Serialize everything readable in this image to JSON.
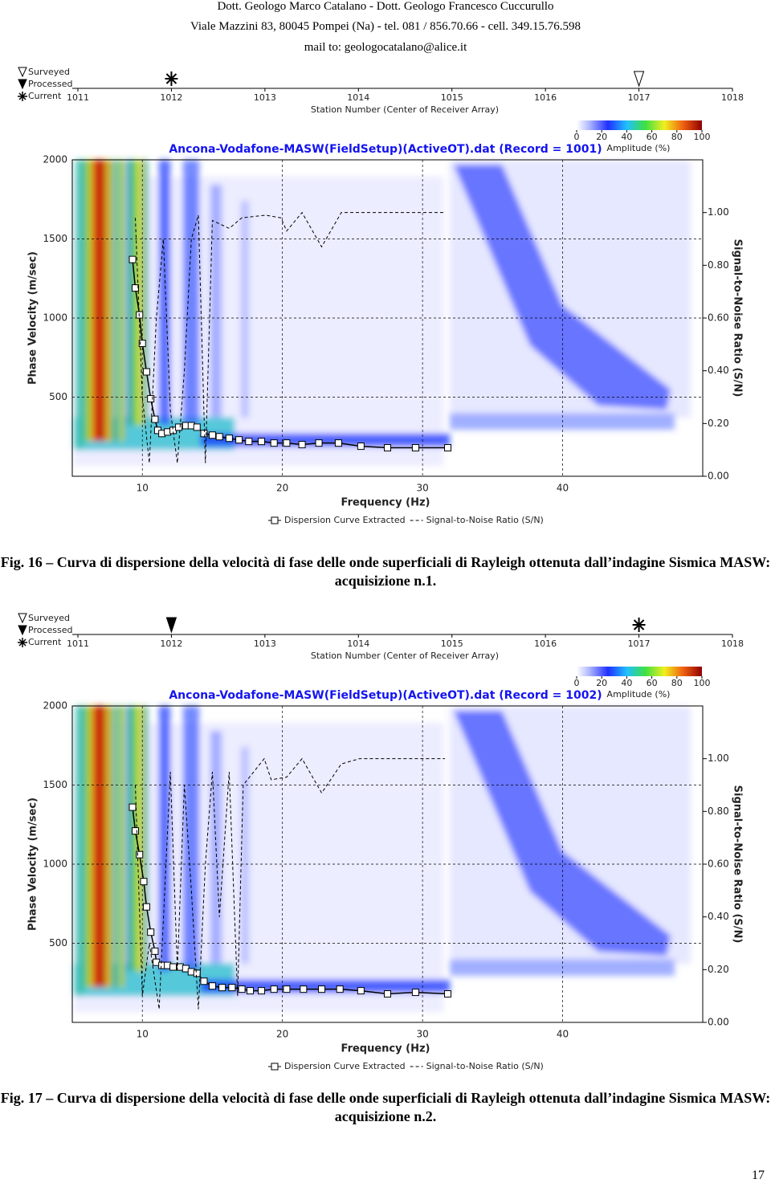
{
  "header": {
    "lines": [
      "Dott. Geologo Marco Catalano - Dott. Geologo Francesco Cuccurullo",
      "Viale Mazzini 83, 80045 Pompei (Na) - tel. 081 / 856.70.66 - cell. 349.15.76.598",
      "mail to: geologocatalano@alice.it"
    ]
  },
  "chart_data": [
    {
      "type": "line",
      "title": "Ancona-Vodafone-MASW(FieldSetup)(ActiveOT).dat (Record = 1001)",
      "station_legend": [
        "Surveyed",
        "Processed",
        "Current"
      ],
      "station_label": "Station Number (Center of Receiver Array)",
      "station_lim": [
        1011,
        1018
      ],
      "station_ticks": [
        1011,
        1012,
        1013,
        1014,
        1015,
        1016,
        1017,
        1018
      ],
      "station_markers": [
        {
          "legend": 2,
          "station": 1012
        },
        {
          "legend": 0,
          "station": 1017
        }
      ],
      "amplitude_label": "Amplitude (%)",
      "amplitude_ticks": [
        0,
        20,
        40,
        60,
        80,
        100
      ],
      "amplitude_lim": [
        0,
        100
      ],
      "x_label": "Frequency (Hz)",
      "y_label": "Phase Velocity (m/sec)",
      "y2_label": "Signal-to-Noise Ratio (S/N)",
      "xlim": [
        5,
        50
      ],
      "xticks": [
        10,
        20,
        30,
        40
      ],
      "ylim": [
        0,
        2000
      ],
      "yticks": [
        500,
        1000,
        1500,
        2000
      ],
      "y2lim": [
        0,
        1.2
      ],
      "y2ticks": [
        {
          "value": 0,
          "label": "0.00"
        },
        {
          "value": 0.2,
          "label": "0.20"
        },
        {
          "value": 0.4,
          "label": "0.40"
        },
        {
          "value": 0.6,
          "label": "0.60"
        },
        {
          "value": 0.8,
          "label": "0.80"
        },
        {
          "value": 1,
          "label": "1.00"
        }
      ],
      "grid": true,
      "series": [
        {
          "name": "Dispersion Curve Extracted",
          "color": "#000000",
          "line_style": "solid",
          "marker": "square",
          "x": [
            9.3,
            9.5,
            9.8,
            10.0,
            10.3,
            10.6,
            10.9,
            11.1,
            11.4,
            11.8,
            12.2,
            12.6,
            13.1,
            13.5,
            13.9,
            14.4,
            15.0,
            15.5,
            16.2,
            16.9,
            17.6,
            18.5,
            19.4,
            20.3,
            21.4,
            22.6,
            24.0,
            25.6,
            27.5,
            29.5,
            31.8
          ],
          "values": [
            1370,
            1190,
            1020,
            840,
            660,
            490,
            360,
            290,
            270,
            280,
            290,
            310,
            320,
            320,
            310,
            270,
            260,
            250,
            240,
            230,
            220,
            220,
            210,
            210,
            200,
            210,
            210,
            190,
            180,
            180,
            180
          ]
        },
        {
          "name": "Signal-to-Noise Ratio (S/N)",
          "color": "#000000",
          "line_style": "dashed",
          "marker": "none",
          "axis": "y2",
          "x": [
            9.5,
            10,
            10.5,
            11,
            11.5,
            12,
            12.5,
            13,
            13.5,
            14,
            14.5,
            15,
            16.2,
            17.1,
            18.8,
            19.9,
            20.3,
            21.4,
            22.8,
            24.2,
            31.6
          ],
          "values": [
            0.98,
            0.3,
            0.05,
            0.6,
            0.9,
            0.25,
            0.05,
            0.4,
            0.9,
            0.99,
            0.05,
            0.97,
            0.94,
            0.98,
            0.99,
            0.98,
            0.93,
            1.0,
            0.87,
            1.0,
            1.0
          ]
        }
      ]
    },
    {
      "type": "line",
      "title": "Ancona-Vodafone-MASW(FieldSetup)(ActiveOT).dat (Record = 1002)",
      "station_legend": [
        "Surveyed",
        "Processed",
        "Current"
      ],
      "station_label": "Station Number (Center of Receiver Array)",
      "station_lim": [
        1011,
        1018
      ],
      "station_ticks": [
        1011,
        1012,
        1013,
        1014,
        1015,
        1016,
        1017,
        1018
      ],
      "station_markers": [
        {
          "legend": 1,
          "station": 1012
        },
        {
          "legend": 2,
          "station": 1017
        }
      ],
      "amplitude_label": "Amplitude (%)",
      "amplitude_ticks": [
        0,
        20,
        40,
        60,
        80,
        100
      ],
      "amplitude_lim": [
        0,
        100
      ],
      "x_label": "Frequency (Hz)",
      "y_label": "Phase Velocity (m/sec)",
      "y2_label": "Signal-to-Noise Ratio (S/N)",
      "xlim": [
        5,
        50
      ],
      "xticks": [
        10,
        20,
        30,
        40
      ],
      "ylim": [
        0,
        2000
      ],
      "yticks": [
        500,
        1000,
        1500,
        2000
      ],
      "y2lim": [
        0,
        1.2
      ],
      "y2ticks": [
        {
          "value": 0,
          "label": "0.00"
        },
        {
          "value": 0.2,
          "label": "0.20"
        },
        {
          "value": 0.4,
          "label": "0.40"
        },
        {
          "value": 0.6,
          "label": "0.60"
        },
        {
          "value": 0.8,
          "label": "0.80"
        },
        {
          "value": 1,
          "label": "1.00"
        }
      ],
      "grid": true,
      "series": [
        {
          "name": "Dispersion Curve Extracted",
          "color": "#000000",
          "line_style": "solid",
          "marker": "square",
          "x": [
            9.3,
            9.5,
            9.8,
            10.1,
            10.3,
            10.6,
            10.9,
            11.0,
            11.4,
            11.8,
            12.2,
            12.7,
            13.1,
            13.5,
            13.9,
            14.4,
            15.0,
            15.7,
            16.4,
            17.1,
            17.7,
            18.5,
            19.4,
            20.3,
            21.5,
            22.8,
            24.1,
            25.6,
            27.5,
            29.5,
            31.8
          ],
          "values": [
            1360,
            1210,
            1060,
            890,
            730,
            570,
            450,
            380,
            360,
            360,
            350,
            350,
            340,
            320,
            310,
            260,
            230,
            220,
            220,
            210,
            200,
            200,
            210,
            210,
            210,
            210,
            210,
            200,
            180,
            190,
            180
          ]
        },
        {
          "name": "Signal-to-Noise Ratio (S/N)",
          "color": "#000000",
          "line_style": "dashed",
          "marker": "none",
          "axis": "y2",
          "x": [
            9.5,
            10,
            10.5,
            11.2,
            12,
            12.5,
            13,
            13.5,
            14,
            14.5,
            15,
            15.5,
            16.2,
            16.8,
            17.2,
            18.7,
            19.2,
            20.3,
            21.4,
            22.8,
            24.2,
            25.5,
            31.6
          ],
          "values": [
            0.9,
            0.1,
            0.3,
            0.05,
            0.95,
            0.2,
            0.9,
            0.5,
            0.05,
            0.6,
            0.95,
            0.4,
            0.95,
            0.1,
            0.9,
            1.0,
            0.92,
            0.93,
            1.0,
            0.87,
            0.98,
            1.0,
            1.0
          ]
        }
      ]
    }
  ],
  "captions": [
    "Fig. 16 – Curva di dispersione della velocità di fase delle onde superficiali di Rayleigh ottenuta dall’indagine Sismica MASW: acquisizione n.1.",
    "Fig. 17 – Curva di dispersione della velocità di fase delle onde superficiali di Rayleigh ottenuta dall’indagine Sismica MASW: acquisizione n.2."
  ],
  "page_number": "17"
}
